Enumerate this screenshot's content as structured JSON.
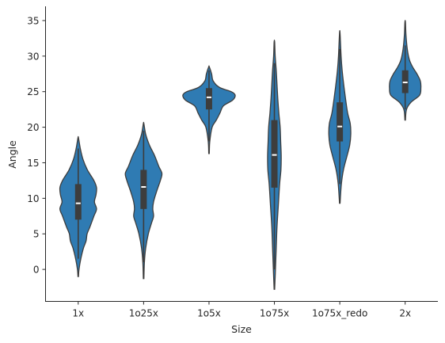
{
  "colors": {
    "violin_fill": "#2f7bb3",
    "violin_edge": "#3d3d3d",
    "box": "#3d3d3d",
    "median": "#ffffff",
    "axis": "#262626"
  },
  "chart_data": {
    "type": "violin",
    "xlabel": "Size",
    "ylabel": "Angle",
    "ylim": [
      -4.5,
      37
    ],
    "yticks": [
      0,
      5,
      10,
      15,
      20,
      25,
      30,
      35
    ],
    "grid": false,
    "legend": "none",
    "categories": [
      "1x",
      "1o25x",
      "1o5x",
      "1o75x",
      "1o75x_redo",
      "2x"
    ],
    "groups": [
      {
        "category": "1x",
        "min": -1,
        "q1": 7,
        "median": 9.3,
        "q3": 12,
        "max": 18.5,
        "whisker_low": 1.5,
        "whisker_high": 17,
        "density": [
          [
            -1,
            0.01
          ],
          [
            0,
            0.03
          ],
          [
            1.5,
            0.1
          ],
          [
            3,
            0.2
          ],
          [
            4,
            0.3
          ],
          [
            5,
            0.34
          ],
          [
            6,
            0.45
          ],
          [
            7.5,
            0.6
          ],
          [
            8.5,
            0.7
          ],
          [
            9.5,
            0.62
          ],
          [
            10.5,
            0.68
          ],
          [
            11.5,
            0.7
          ],
          [
            12.5,
            0.6
          ],
          [
            14,
            0.35
          ],
          [
            15.5,
            0.18
          ],
          [
            17,
            0.08
          ],
          [
            18.5,
            0.01
          ]
        ]
      },
      {
        "category": "1o25x",
        "min": -1.3,
        "q1": 8.5,
        "median": 11.6,
        "q3": 14,
        "max": 20.5,
        "whisker_low": 1,
        "whisker_high": 19.5,
        "density": [
          [
            -1.3,
            0.01
          ],
          [
            1,
            0.03
          ],
          [
            3,
            0.08
          ],
          [
            5,
            0.18
          ],
          [
            6.5,
            0.3
          ],
          [
            7.5,
            0.38
          ],
          [
            8.5,
            0.35
          ],
          [
            9.5,
            0.38
          ],
          [
            11,
            0.5
          ],
          [
            12.5,
            0.64
          ],
          [
            13.5,
            0.7
          ],
          [
            14.5,
            0.58
          ],
          [
            16,
            0.42
          ],
          [
            17.5,
            0.22
          ],
          [
            19,
            0.08
          ],
          [
            20.5,
            0.01
          ]
        ]
      },
      {
        "category": "1o5x",
        "min": 16.3,
        "q1": 22.5,
        "median": 24.2,
        "q3": 25.5,
        "max": 28.5,
        "whisker_low": 18,
        "whisker_high": 28,
        "density": [
          [
            16.3,
            0.01
          ],
          [
            18,
            0.03
          ],
          [
            20,
            0.12
          ],
          [
            21,
            0.28
          ],
          [
            22,
            0.42
          ],
          [
            23,
            0.55
          ],
          [
            23.8,
            0.9
          ],
          [
            24.5,
            1.0
          ],
          [
            25,
            0.85
          ],
          [
            25.6,
            0.4
          ],
          [
            26.5,
            0.16
          ],
          [
            27.5,
            0.1
          ],
          [
            28.5,
            0.01
          ]
        ]
      },
      {
        "category": "1o75x",
        "min": -2.8,
        "q1": 11.5,
        "median": 16.1,
        "q3": 21,
        "max": 32,
        "whisker_low": 0,
        "whisker_high": 29,
        "density": [
          [
            -2.8,
            0.01
          ],
          [
            0,
            0.04
          ],
          [
            3,
            0.07
          ],
          [
            6,
            0.1
          ],
          [
            9,
            0.15
          ],
          [
            12,
            0.2
          ],
          [
            14,
            0.25
          ],
          [
            16,
            0.26
          ],
          [
            18,
            0.24
          ],
          [
            20,
            0.22
          ],
          [
            22,
            0.17
          ],
          [
            24,
            0.13
          ],
          [
            26,
            0.1
          ],
          [
            28,
            0.07
          ],
          [
            30,
            0.03
          ],
          [
            32,
            0.01
          ]
        ]
      },
      {
        "category": "1o75x_redo",
        "min": 9.3,
        "q1": 18,
        "median": 20.1,
        "q3": 23.5,
        "max": 33.2,
        "whisker_low": 12,
        "whisker_high": 31,
        "density": [
          [
            9.3,
            0.01
          ],
          [
            12,
            0.06
          ],
          [
            14,
            0.14
          ],
          [
            16,
            0.28
          ],
          [
            17.5,
            0.38
          ],
          [
            19,
            0.42
          ],
          [
            20.5,
            0.4
          ],
          [
            22,
            0.3
          ],
          [
            24,
            0.22
          ],
          [
            26,
            0.15
          ],
          [
            28,
            0.09
          ],
          [
            30,
            0.05
          ],
          [
            33.2,
            0.01
          ]
        ]
      },
      {
        "category": "2x",
        "min": 21,
        "q1": 24.8,
        "median": 26.3,
        "q3": 28,
        "max": 34.8,
        "whisker_low": 22.5,
        "whisker_high": 31.5,
        "density": [
          [
            21,
            0.01
          ],
          [
            22.5,
            0.05
          ],
          [
            23.5,
            0.22
          ],
          [
            24.5,
            0.55
          ],
          [
            25.5,
            0.6
          ],
          [
            26.5,
            0.58
          ],
          [
            27.5,
            0.45
          ],
          [
            28.5,
            0.28
          ],
          [
            29.5,
            0.16
          ],
          [
            31,
            0.08
          ],
          [
            33,
            0.03
          ],
          [
            34.8,
            0.01
          ]
        ]
      }
    ]
  }
}
